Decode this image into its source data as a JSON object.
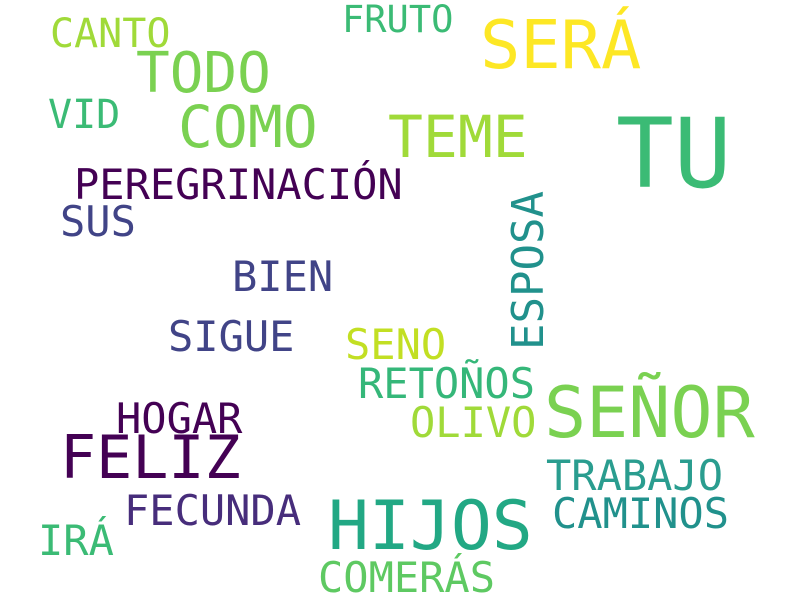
{
  "words": [
    {
      "text": "CANTO",
      "color": "#a0da39"
    },
    {
      "text": "FRUTO",
      "color": "#3bbb75"
    },
    {
      "text": "SERÁ",
      "color": "#fde725"
    },
    {
      "text": "TODO",
      "color": "#7ad151"
    },
    {
      "text": "VID",
      "color": "#3bbb75"
    },
    {
      "text": "COMO",
      "color": "#7ad151"
    },
    {
      "text": "TEME",
      "color": "#a0da39"
    },
    {
      "text": "TU",
      "color": "#3bbb75"
    },
    {
      "text": "PEREGRINACIÓN",
      "color": "#440154"
    },
    {
      "text": "SUS",
      "color": "#414487"
    },
    {
      "text": "ESPOSA",
      "color": "#21918c"
    },
    {
      "text": "BIEN",
      "color": "#414487"
    },
    {
      "text": "SIGUE",
      "color": "#414487"
    },
    {
      "text": "SENO",
      "color": "#c2df23"
    },
    {
      "text": "RETOÑOS",
      "color": "#35b779"
    },
    {
      "text": "SEÑOR",
      "color": "#7ad151"
    },
    {
      "text": "HOGAR",
      "color": "#440154"
    },
    {
      "text": "OLIVO",
      "color": "#a0da39"
    },
    {
      "text": "FELIZ",
      "color": "#440154"
    },
    {
      "text": "TRABAJO",
      "color": "#2a9d8f"
    },
    {
      "text": "FECUNDA",
      "color": "#472d7b"
    },
    {
      "text": "HIJOS",
      "color": "#22a884"
    },
    {
      "text": "CAMINOS",
      "color": "#21918c"
    },
    {
      "text": "IRÁ",
      "color": "#3bbb75"
    },
    {
      "text": "COMERÁS",
      "color": "#5ec962"
    }
  ]
}
